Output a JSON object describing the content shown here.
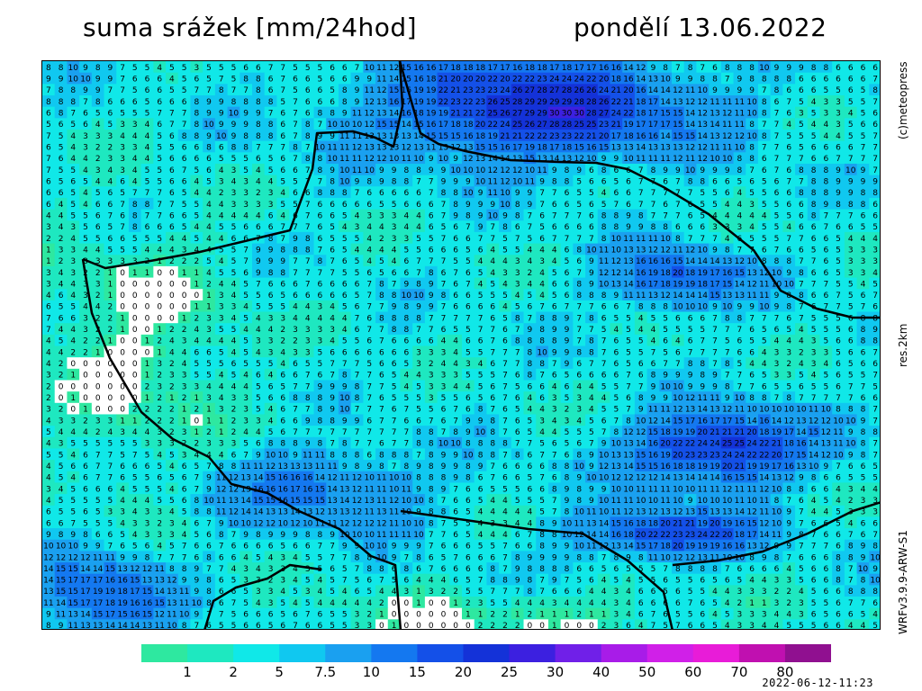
{
  "header": {
    "title": "suma srážek [mm/24hod]",
    "date": "pondělí 13.06.2022"
  },
  "side_labels": {
    "credit": "(c)meteopress",
    "resolution": "res.2km",
    "model": "WRFv3.9.9-ARW-S1"
  },
  "legend": {
    "ticks": [
      "1",
      "2",
      "5",
      "7.5",
      "10",
      "15",
      "20",
      "25",
      "30",
      "40",
      "50",
      "60",
      "70",
      "80"
    ],
    "colors": [
      "#2ee8a0",
      "#1ee8c0",
      "#10e8e8",
      "#10c8f0",
      "#1aa0f0",
      "#1478f0",
      "#1450e8",
      "#1432d8",
      "#3c20e0",
      "#7020e8",
      "#a81ce8",
      "#d020e8",
      "#e81cd8",
      "#c010b0",
      "#901090"
    ]
  },
  "timestamp": "2022-06-12-11:23"
}
